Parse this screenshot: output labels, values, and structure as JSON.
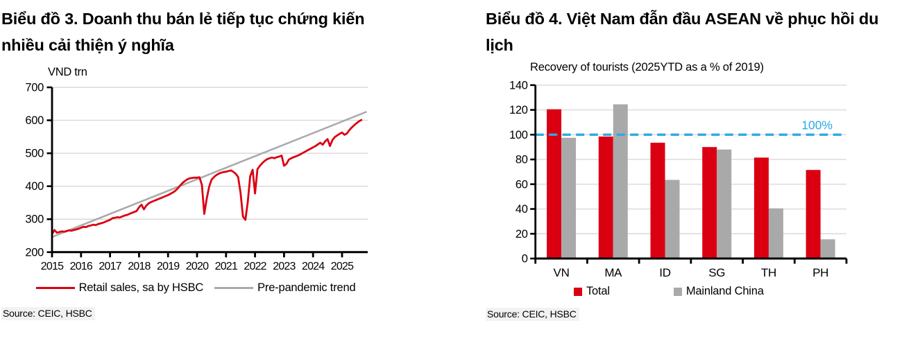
{
  "left": {
    "title_lines": [
      "Biểu đồ 3. Doanh thu bán lẻ tiếp tục chứng kiến",
      "nhiều cải thiện ý nghĩa"
    ],
    "source": "Source: CEIC, HSBC"
  },
  "right": {
    "title_lines": [
      "Biểu đồ 4. Việt Nam đẫn đầu ASEAN về phục hồi du",
      "lịch"
    ],
    "source": "Source: CEIC, HSBC"
  },
  "chart_data": [
    {
      "type": "line",
      "title": "",
      "ylabel": "VND trn",
      "xlim": [
        2015,
        2025.9
      ],
      "ylim": [
        200,
        700
      ],
      "yticks": [
        200,
        300,
        400,
        500,
        600,
        700
      ],
      "xticks": [
        2015,
        2016,
        2017,
        2018,
        2019,
        2020,
        2021,
        2022,
        2023,
        2024,
        2025
      ],
      "x_start": 2015.0,
      "x_step": 0.083333,
      "grid": "horizontal",
      "legend_position": "bottom",
      "series": [
        {
          "name": "Retail sales, sa by HSBC",
          "color": "#DB0011",
          "values": [
            255,
            267,
            259,
            261,
            263,
            262,
            264,
            266,
            265,
            267,
            269,
            271,
            274,
            277,
            276,
            279,
            281,
            283,
            282,
            285,
            287,
            289,
            292,
            295,
            298,
            303,
            304,
            306,
            305,
            308,
            311,
            313,
            316,
            319,
            322,
            325,
            336,
            344,
            330,
            341,
            348,
            352,
            355,
            358,
            361,
            364,
            367,
            370,
            373,
            377,
            381,
            386,
            393,
            402,
            410,
            416,
            421,
            424,
            425,
            426,
            426,
            427,
            404,
            316,
            362,
            398,
            420,
            428,
            434,
            438,
            441,
            443,
            444,
            446,
            448,
            444,
            438,
            428,
            380,
            308,
            298,
            352,
            430,
            450,
            378,
            452,
            462,
            470,
            477,
            482,
            485,
            487,
            485,
            488,
            490,
            493,
            462,
            468,
            481,
            485,
            488,
            491,
            494,
            498,
            502,
            506,
            510,
            514,
            518,
            522,
            527,
            532,
            526,
            536,
            543,
            522,
            540,
            549,
            554,
            559,
            563,
            556,
            560,
            570,
            578,
            585,
            591,
            597,
            601
          ]
        },
        {
          "name": "Pre-pandemic trend",
          "color": "#ABABAB",
          "x": [
            2015.0,
            2025.85
          ],
          "values": [
            246,
            626
          ]
        }
      ]
    },
    {
      "type": "bar",
      "title": "Recovery of tourists (2025YTD as a % of 2019)",
      "categories": [
        "VN",
        "MA",
        "ID",
        "SG",
        "TH",
        "PH"
      ],
      "series": [
        {
          "name": "Total",
          "color": "#DB0011",
          "values": [
            120.5,
            98.5,
            93.5,
            90,
            81.5,
            71.5
          ]
        },
        {
          "name": "Mainland China",
          "color": "#A9A9A9",
          "values": [
            97.5,
            124.5,
            63.5,
            88,
            40.5,
            15.5
          ]
        }
      ],
      "ylim": [
        0,
        140
      ],
      "yticks": [
        0,
        20,
        40,
        60,
        80,
        100,
        120,
        140
      ],
      "grid": "horizontal",
      "legend_position": "bottom",
      "reference_line": {
        "value": 100,
        "label": "100%",
        "color": "#29ABE2"
      }
    }
  ]
}
